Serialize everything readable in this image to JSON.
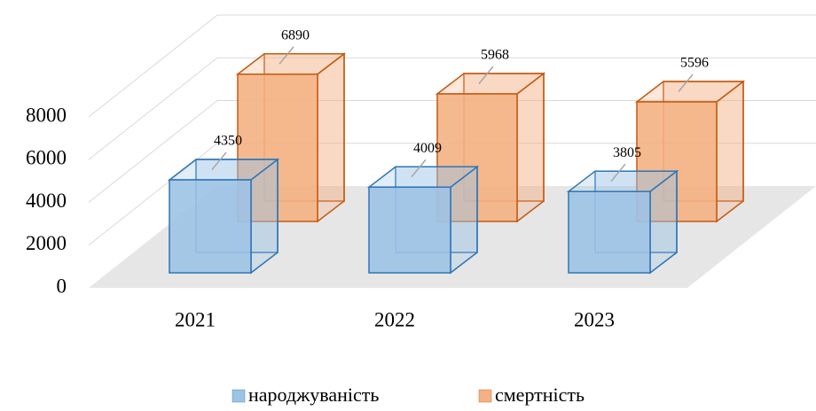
{
  "chart_data": {
    "type": "bar3d",
    "categories": [
      "2021",
      "2022",
      "2023"
    ],
    "series": [
      {
        "name": "народжуваність",
        "color": "#9dc3e6",
        "values": [
          4350,
          4009,
          3805
        ]
      },
      {
        "name": "смертність",
        "color": "#f4b183",
        "values": [
          6890,
          5968,
          5596
        ]
      }
    ],
    "ylim": [
      0,
      8000
    ],
    "yticks": [
      0,
      2000,
      4000,
      6000,
      8000
    ],
    "grid": true,
    "legend": "bottom"
  }
}
